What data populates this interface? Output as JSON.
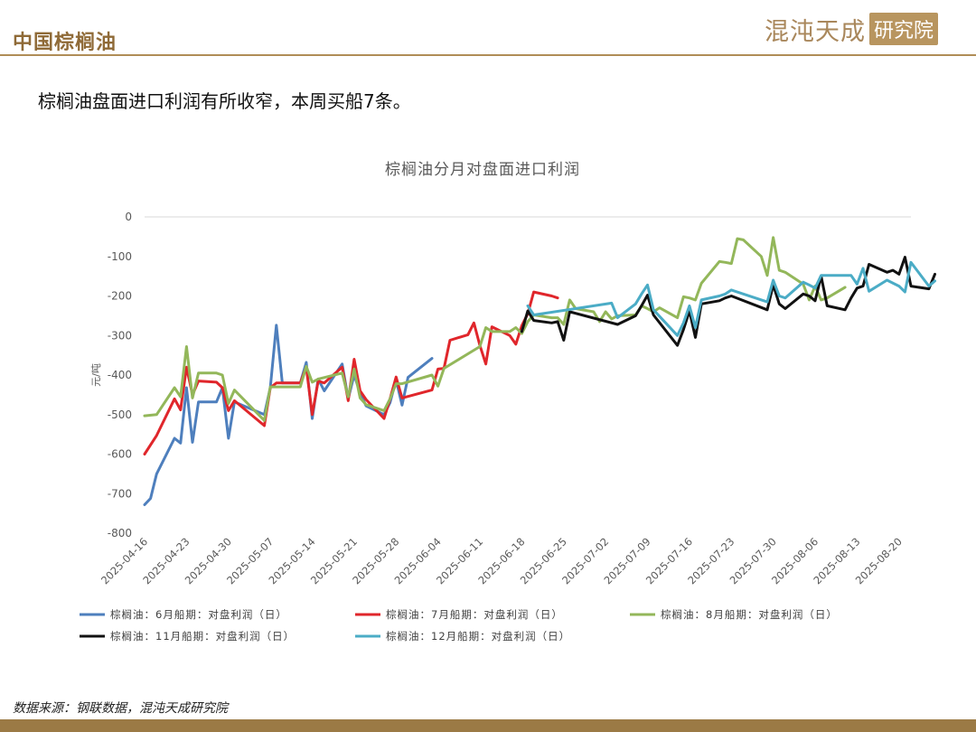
{
  "header": {
    "title": "中国棕榈油",
    "logo_main": "混沌天成",
    "logo_box": "研究院"
  },
  "subtitle": "棕榈油盘面进口利润有所收窄，本周买船7条。",
  "source": "数据来源：钢联数据，混沌天成研究院",
  "chart_data": {
    "type": "line",
    "title": "棕榈油分月对盘面进口利润",
    "ylabel": "元/吨",
    "xlabel": "",
    "ylim": [
      -800,
      0
    ],
    "yticks": [
      0,
      -100,
      -200,
      -300,
      -400,
      -500,
      -600,
      -700,
      -800
    ],
    "xlim": [
      "2025-04-16",
      "2025-08-22"
    ],
    "xticks": [
      "2025-04-16",
      "2025-04-23",
      "2025-04-30",
      "2025-05-07",
      "2025-05-14",
      "2025-05-21",
      "2025-05-28",
      "2025-06-04",
      "2025-06-11",
      "2025-06-18",
      "2025-06-25",
      "2025-07-02",
      "2025-07-09",
      "2025-07-16",
      "2025-07-23",
      "2025-07-30",
      "2025-08-06",
      "2025-08-13",
      "2025-08-20"
    ],
    "grid": false,
    "legend_position": "bottom",
    "series": [
      {
        "name": "棕榈油：6月船期：对盘利润（日）",
        "color": "#4e7fbd",
        "points": [
          [
            "2025-04-16",
            -728
          ],
          [
            "2025-04-17",
            -712
          ],
          [
            "2025-04-18",
            -650
          ],
          [
            "2025-04-21",
            -560
          ],
          [
            "2025-04-22",
            -572
          ],
          [
            "2025-04-23",
            -432
          ],
          [
            "2025-04-24",
            -570
          ],
          [
            "2025-04-25",
            -468
          ],
          [
            "2025-04-28",
            -468
          ],
          [
            "2025-04-29",
            -432
          ],
          [
            "2025-04-30",
            -560
          ],
          [
            "2025-05-01",
            -468
          ],
          [
            "2025-05-06",
            -500
          ],
          [
            "2025-05-07",
            -432
          ],
          [
            "2025-05-08",
            -274
          ],
          [
            "2025-05-09",
            -420
          ],
          [
            "2025-05-12",
            -420
          ],
          [
            "2025-05-13",
            -368
          ],
          [
            "2025-05-14",
            -510
          ],
          [
            "2025-05-15",
            -410
          ],
          [
            "2025-05-16",
            -440
          ],
          [
            "2025-05-19",
            -372
          ],
          [
            "2025-05-20",
            -460
          ],
          [
            "2025-05-21",
            -400
          ],
          [
            "2025-05-22",
            -445
          ],
          [
            "2025-05-23",
            -478
          ],
          [
            "2025-05-26",
            -500
          ],
          [
            "2025-05-27",
            -470
          ],
          [
            "2025-05-28",
            -412
          ],
          [
            "2025-05-29",
            -476
          ],
          [
            "2025-05-30",
            -406
          ],
          [
            "2025-06-03",
            -358
          ]
        ]
      },
      {
        "name": "棕榈油：7月船期：对盘利润（日）",
        "color": "#e0262b",
        "points": [
          [
            "2025-04-16",
            -600
          ],
          [
            "2025-04-18",
            -553
          ],
          [
            "2025-04-21",
            -460
          ],
          [
            "2025-04-22",
            -488
          ],
          [
            "2025-04-23",
            -380
          ],
          [
            "2025-04-24",
            -450
          ],
          [
            "2025-04-25",
            -415
          ],
          [
            "2025-04-28",
            -418
          ],
          [
            "2025-04-29",
            -432
          ],
          [
            "2025-04-30",
            -490
          ],
          [
            "2025-05-01",
            -465
          ],
          [
            "2025-05-06",
            -528
          ],
          [
            "2025-05-07",
            -432
          ],
          [
            "2025-05-08",
            -420
          ],
          [
            "2025-05-12",
            -420
          ],
          [
            "2025-05-13",
            -380
          ],
          [
            "2025-05-14",
            -500
          ],
          [
            "2025-05-15",
            -415
          ],
          [
            "2025-05-16",
            -420
          ],
          [
            "2025-05-19",
            -380
          ],
          [
            "2025-05-20",
            -465
          ],
          [
            "2025-05-21",
            -360
          ],
          [
            "2025-05-22",
            -440
          ],
          [
            "2025-05-23",
            -462
          ],
          [
            "2025-05-26",
            -510
          ],
          [
            "2025-05-27",
            -460
          ],
          [
            "2025-05-28",
            -405
          ],
          [
            "2025-05-29",
            -458
          ],
          [
            "2025-06-03",
            -438
          ],
          [
            "2025-06-04",
            -385
          ],
          [
            "2025-06-05",
            -383
          ],
          [
            "2025-06-06",
            -312
          ],
          [
            "2025-06-09",
            -298
          ],
          [
            "2025-06-10",
            -268
          ],
          [
            "2025-06-11",
            -325
          ],
          [
            "2025-06-12",
            -372
          ],
          [
            "2025-06-13",
            -278
          ],
          [
            "2025-06-16",
            -300
          ],
          [
            "2025-06-17",
            -322
          ],
          [
            "2025-06-18",
            -275
          ],
          [
            "2025-06-19",
            -245
          ],
          [
            "2025-06-20",
            -190
          ],
          [
            "2025-06-23",
            -200
          ],
          [
            "2025-06-24",
            -205
          ]
        ]
      },
      {
        "name": "棕榈油：8月船期：对盘利润（日）",
        "color": "#93b75a",
        "points": [
          [
            "2025-04-16",
            -503
          ],
          [
            "2025-04-18",
            -500
          ],
          [
            "2025-04-21",
            -432
          ],
          [
            "2025-04-22",
            -455
          ],
          [
            "2025-04-23",
            -328
          ],
          [
            "2025-04-24",
            -458
          ],
          [
            "2025-04-25",
            -395
          ],
          [
            "2025-04-28",
            -395
          ],
          [
            "2025-04-29",
            -400
          ],
          [
            "2025-04-30",
            -472
          ],
          [
            "2025-05-01",
            -438
          ],
          [
            "2025-05-06",
            -515
          ],
          [
            "2025-05-07",
            -430
          ],
          [
            "2025-05-12",
            -430
          ],
          [
            "2025-05-13",
            -378
          ],
          [
            "2025-05-14",
            -418
          ],
          [
            "2025-05-15",
            -410
          ],
          [
            "2025-05-19",
            -395
          ],
          [
            "2025-05-20",
            -455
          ],
          [
            "2025-05-21",
            -385
          ],
          [
            "2025-05-22",
            -458
          ],
          [
            "2025-05-23",
            -475
          ],
          [
            "2025-05-26",
            -490
          ],
          [
            "2025-05-27",
            -460
          ],
          [
            "2025-05-28",
            -422
          ],
          [
            "2025-05-29",
            -422
          ],
          [
            "2025-06-03",
            -400
          ],
          [
            "2025-06-04",
            -428
          ],
          [
            "2025-06-05",
            -383
          ],
          [
            "2025-06-11",
            -328
          ],
          [
            "2025-06-12",
            -280
          ],
          [
            "2025-06-13",
            -290
          ],
          [
            "2025-06-16",
            -290
          ],
          [
            "2025-06-17",
            -280
          ],
          [
            "2025-06-18",
            -295
          ],
          [
            "2025-06-19",
            -265
          ],
          [
            "2025-06-20",
            -248
          ],
          [
            "2025-06-23",
            -255
          ],
          [
            "2025-06-24",
            -255
          ],
          [
            "2025-06-25",
            -272
          ],
          [
            "2025-06-26",
            -210
          ],
          [
            "2025-06-27",
            -232
          ],
          [
            "2025-06-30",
            -240
          ],
          [
            "2025-07-01",
            -265
          ],
          [
            "2025-07-02",
            -240
          ],
          [
            "2025-07-03",
            -258
          ],
          [
            "2025-07-04",
            -250
          ],
          [
            "2025-07-07",
            -248
          ],
          [
            "2025-07-08",
            -225
          ],
          [
            "2025-07-09",
            -232
          ],
          [
            "2025-07-10",
            -240
          ],
          [
            "2025-07-11",
            -230
          ],
          [
            "2025-07-14",
            -255
          ],
          [
            "2025-07-15",
            -202
          ],
          [
            "2025-07-16",
            -205
          ],
          [
            "2025-07-17",
            -210
          ],
          [
            "2025-07-18",
            -168
          ],
          [
            "2025-07-21",
            -113
          ],
          [
            "2025-07-22",
            -115
          ],
          [
            "2025-07-23",
            -118
          ],
          [
            "2025-07-24",
            -55
          ],
          [
            "2025-07-25",
            -58
          ],
          [
            "2025-07-28",
            -100
          ],
          [
            "2025-07-29",
            -148
          ],
          [
            "2025-07-30",
            -52
          ],
          [
            "2025-07-31",
            -135
          ],
          [
            "2025-08-01",
            -140
          ],
          [
            "2025-08-04",
            -170
          ],
          [
            "2025-08-05",
            -210
          ],
          [
            "2025-08-06",
            -175
          ],
          [
            "2025-08-07",
            -210
          ],
          [
            "2025-08-08",
            -205
          ],
          [
            "2025-08-11",
            -178
          ]
        ]
      },
      {
        "name": "棕榈油：11月船期：对盘利润（日）",
        "color": "#111111",
        "points": [
          [
            "2025-06-18",
            -290
          ],
          [
            "2025-06-19",
            -238
          ],
          [
            "2025-06-20",
            -262
          ],
          [
            "2025-06-23",
            -268
          ],
          [
            "2025-06-24",
            -265
          ],
          [
            "2025-06-25",
            -312
          ],
          [
            "2025-06-26",
            -240
          ],
          [
            "2025-07-04",
            -272
          ],
          [
            "2025-07-07",
            -250
          ],
          [
            "2025-07-08",
            -225
          ],
          [
            "2025-07-09",
            -198
          ],
          [
            "2025-07-10",
            -248
          ],
          [
            "2025-07-14",
            -325
          ],
          [
            "2025-07-15",
            -285
          ],
          [
            "2025-07-16",
            -238
          ],
          [
            "2025-07-17",
            -305
          ],
          [
            "2025-07-18",
            -220
          ],
          [
            "2025-07-21",
            -212
          ],
          [
            "2025-07-22",
            -205
          ],
          [
            "2025-07-23",
            -200
          ],
          [
            "2025-07-29",
            -235
          ],
          [
            "2025-07-30",
            -172
          ],
          [
            "2025-07-31",
            -220
          ],
          [
            "2025-08-01",
            -232
          ],
          [
            "2025-08-04",
            -195
          ],
          [
            "2025-08-05",
            -200
          ],
          [
            "2025-08-06",
            -212
          ],
          [
            "2025-08-07",
            -150
          ],
          [
            "2025-08-08",
            -225
          ],
          [
            "2025-08-11",
            -235
          ],
          [
            "2025-08-12",
            -205
          ],
          [
            "2025-08-13",
            -180
          ],
          [
            "2025-08-14",
            -175
          ],
          [
            "2025-08-15",
            -120
          ],
          [
            "2025-08-18",
            -140
          ],
          [
            "2025-08-19",
            -135
          ],
          [
            "2025-08-20",
            -145
          ],
          [
            "2025-08-21",
            -102
          ],
          [
            "2025-08-22",
            -175
          ],
          [
            "2025-08-25",
            -182
          ],
          [
            "2025-08-26",
            -145
          ]
        ]
      },
      {
        "name": "棕榈油：12月船期：对盘利润（日）",
        "color": "#4bacc6",
        "points": [
          [
            "2025-06-19",
            -225
          ],
          [
            "2025-06-20",
            -248
          ],
          [
            "2025-07-03",
            -218
          ],
          [
            "2025-07-04",
            -255
          ],
          [
            "2025-07-07",
            -220
          ],
          [
            "2025-07-08",
            -195
          ],
          [
            "2025-07-09",
            -172
          ],
          [
            "2025-07-10",
            -235
          ],
          [
            "2025-07-14",
            -300
          ],
          [
            "2025-07-15",
            -268
          ],
          [
            "2025-07-16",
            -225
          ],
          [
            "2025-07-17",
            -280
          ],
          [
            "2025-07-18",
            -210
          ],
          [
            "2025-07-21",
            -200
          ],
          [
            "2025-07-22",
            -195
          ],
          [
            "2025-07-23",
            -185
          ],
          [
            "2025-07-29",
            -215
          ],
          [
            "2025-07-30",
            -160
          ],
          [
            "2025-07-31",
            -200
          ],
          [
            "2025-08-01",
            -205
          ],
          [
            "2025-08-04",
            -165
          ],
          [
            "2025-08-05",
            -172
          ],
          [
            "2025-08-06",
            -180
          ],
          [
            "2025-08-07",
            -148
          ],
          [
            "2025-08-12",
            -148
          ],
          [
            "2025-08-13",
            -170
          ],
          [
            "2025-08-14",
            -130
          ],
          [
            "2025-08-15",
            -188
          ],
          [
            "2025-08-18",
            -160
          ],
          [
            "2025-08-20",
            -175
          ],
          [
            "2025-08-21",
            -190
          ],
          [
            "2025-08-22",
            -115
          ],
          [
            "2025-08-25",
            -175
          ],
          [
            "2025-08-26",
            -162
          ]
        ]
      }
    ]
  }
}
